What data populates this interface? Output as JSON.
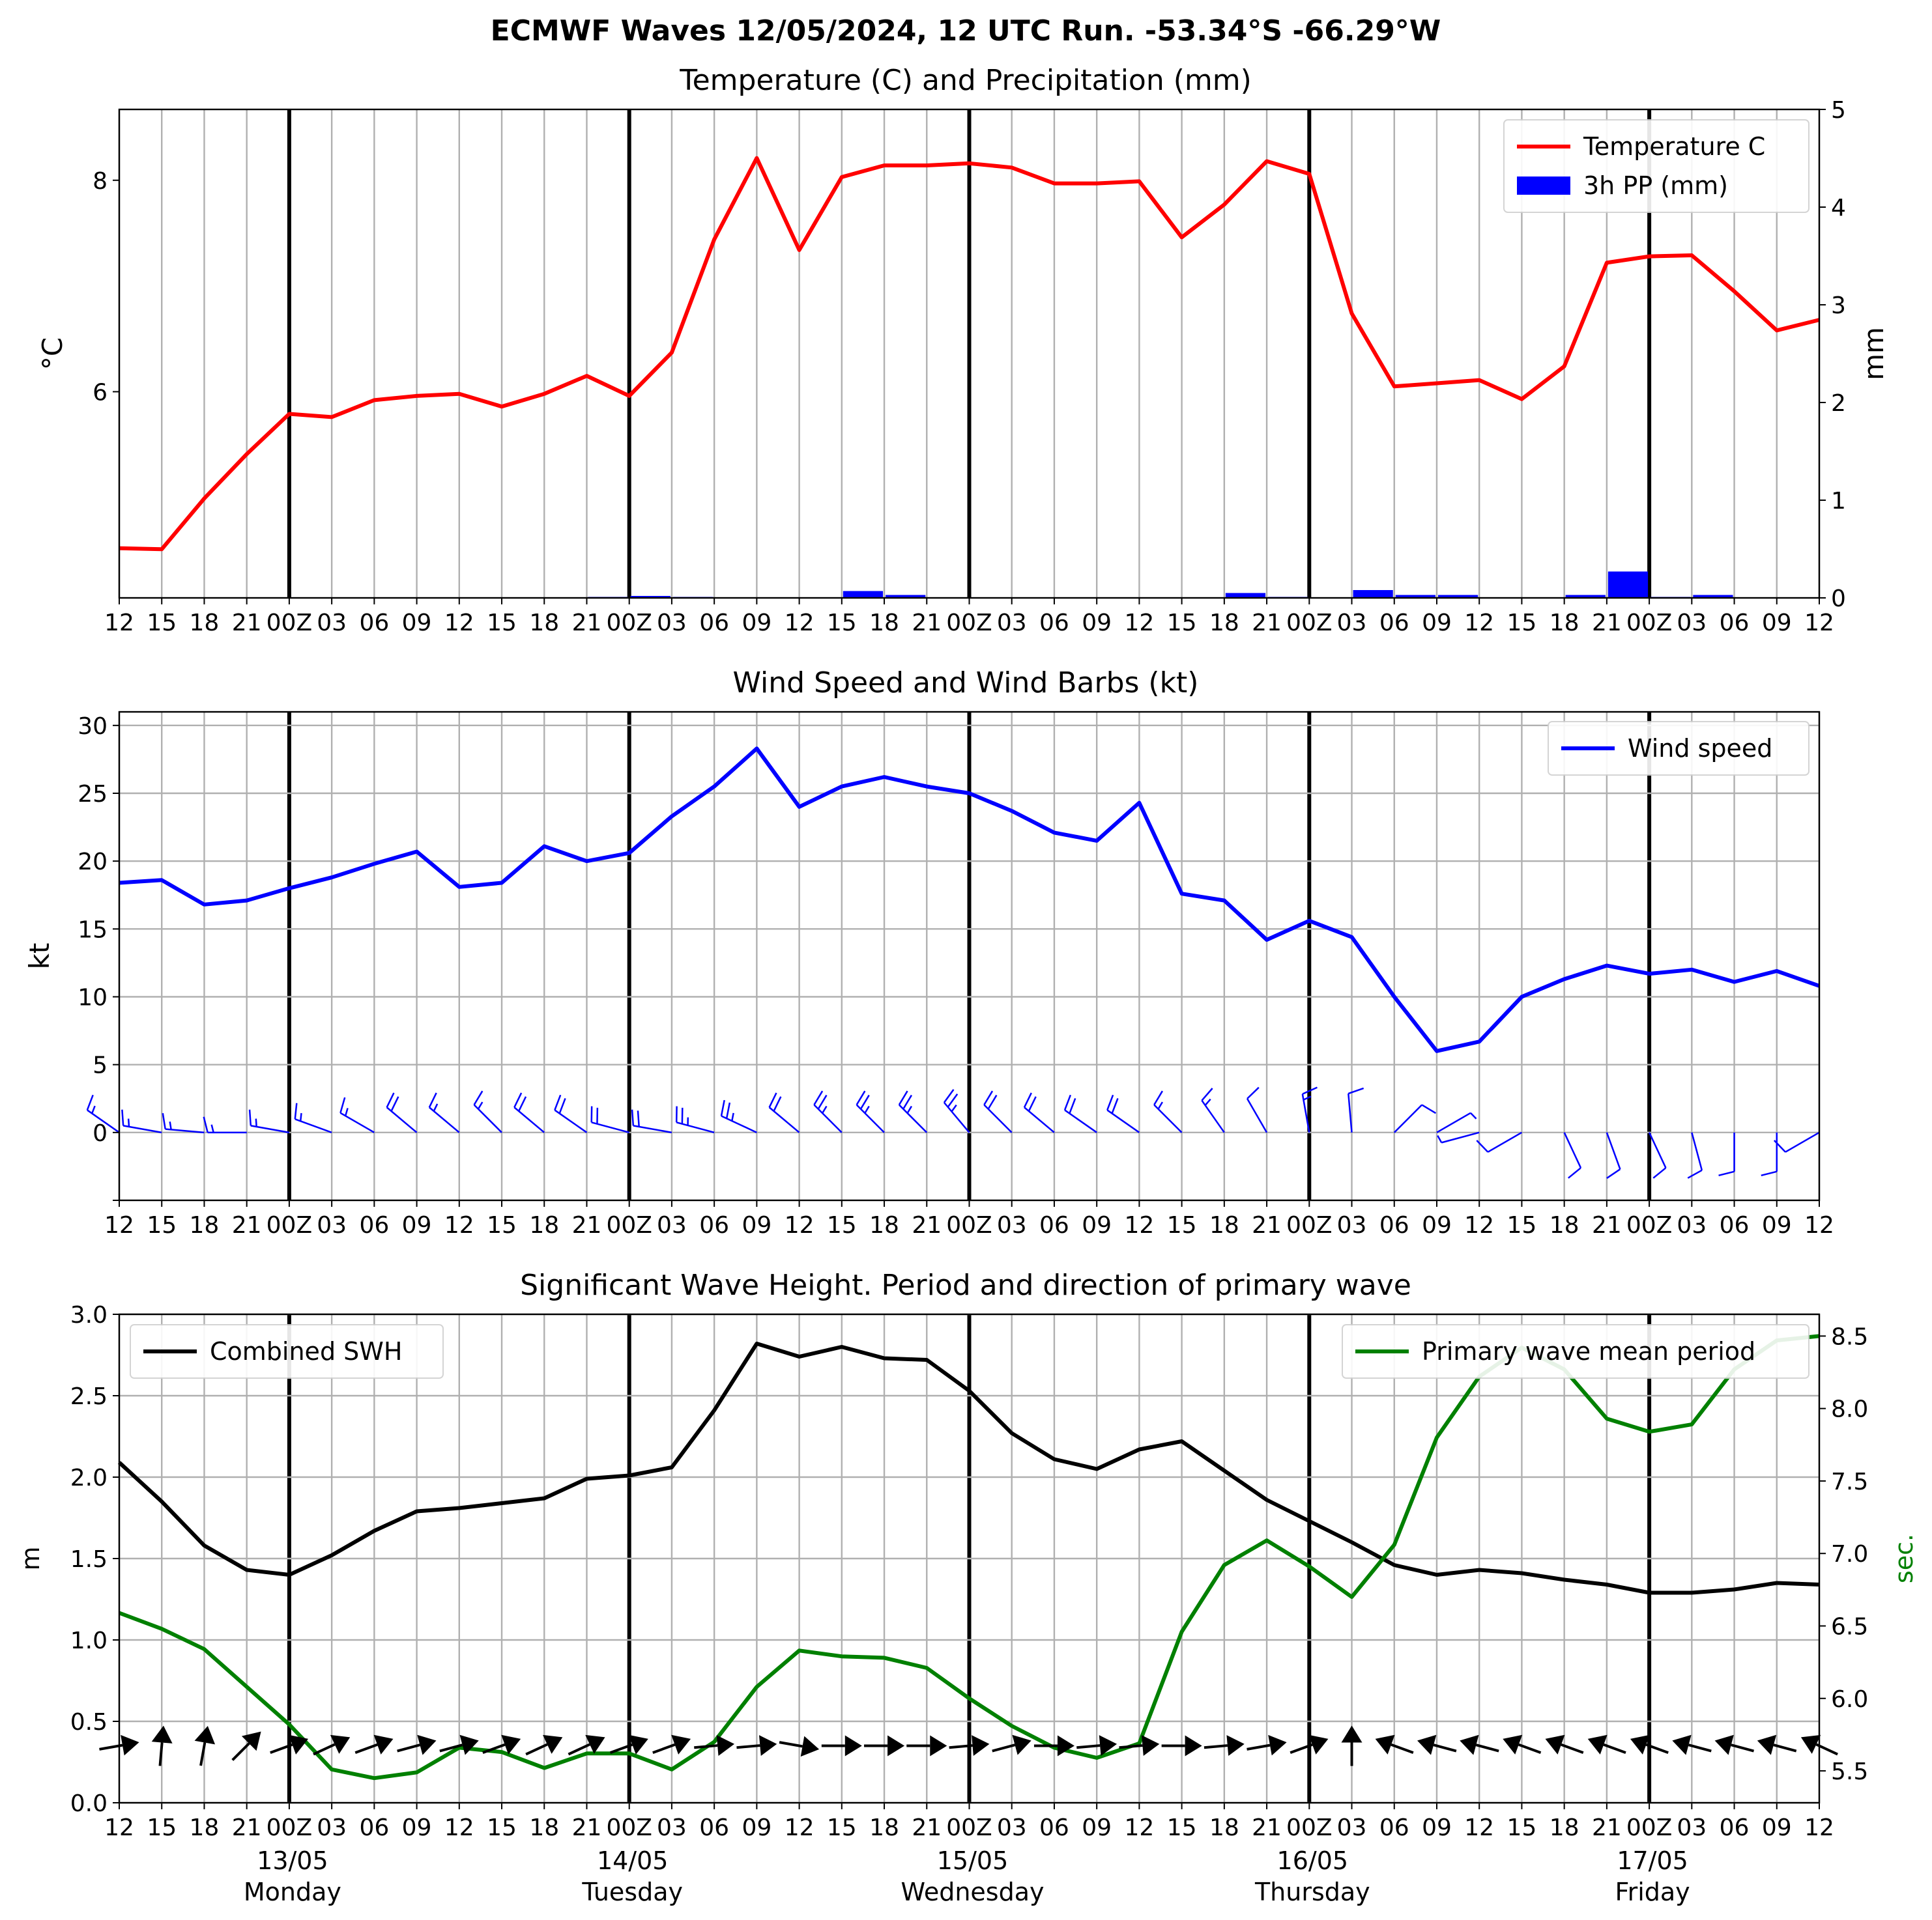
{
  "figure": {
    "suptitle": "ECMWF Waves 12/05/2024, 12 UTC Run. -53.34°S -66.29°W"
  },
  "x_axis": {
    "tick_labels": [
      "12",
      "15",
      "18",
      "21",
      "00Z",
      "03",
      "06",
      "09",
      "12",
      "15",
      "18",
      "21",
      "00Z",
      "03",
      "06",
      "09",
      "12",
      "15",
      "18",
      "21",
      "00Z",
      "03",
      "06",
      "09",
      "12",
      "15",
      "18",
      "21",
      "00Z",
      "03",
      "06",
      "09",
      "12",
      "15",
      "18",
      "21",
      "00Z",
      "03",
      "06",
      "09",
      "12"
    ],
    "day_labels": [
      {
        "date": "13/05",
        "weekday": "Monday"
      },
      {
        "date": "14/05",
        "weekday": "Tuesday"
      },
      {
        "date": "15/05",
        "weekday": "Wednesday"
      },
      {
        "date": "16/05",
        "weekday": "Thursday"
      },
      {
        "date": "17/05",
        "weekday": "Friday"
      }
    ]
  },
  "chart_data": [
    {
      "type": "line",
      "title": "Temperature (C) and Precipitation (mm)",
      "ylabel": "°C",
      "y2label": "mm",
      "ylim": [
        4.05,
        8.67
      ],
      "y_ticks": [
        "6",
        "8"
      ],
      "y2lim": [
        0,
        5
      ],
      "y2_ticks": [
        "0",
        "1",
        "2",
        "3",
        "4",
        "5"
      ],
      "legend_position": "top-right",
      "series": [
        {
          "name": "Temperature C",
          "kind": "line",
          "color": "#ff0000",
          "values": [
            4.52,
            4.51,
            4.99,
            5.41,
            5.79,
            5.76,
            5.92,
            5.96,
            5.98,
            5.86,
            5.98,
            6.15,
            5.96,
            6.37,
            7.44,
            8.21,
            7.34,
            8.03,
            8.14,
            8.14,
            8.16,
            8.12,
            7.97,
            7.97,
            7.99,
            7.46,
            7.77,
            8.18,
            8.06,
            6.74,
            6.05,
            6.08,
            6.11,
            5.93,
            6.24,
            7.22,
            7.28,
            7.29,
            6.95,
            6.58,
            6.68
          ]
        },
        {
          "name": "3h PP (mm)",
          "kind": "bar",
          "color": "#0000ff",
          "values": [
            0,
            0,
            0,
            0,
            0,
            0,
            0,
            0,
            0,
            0,
            0,
            0.01,
            0.02,
            0.01,
            0,
            0,
            0,
            0.07,
            0.03,
            0,
            0,
            0,
            0,
            0,
            0,
            0,
            0.05,
            0.01,
            0,
            0.08,
            0.03,
            0.03,
            0,
            0,
            0.03,
            0.27,
            0.01,
            0.03,
            0,
            0,
            0
          ]
        }
      ]
    },
    {
      "type": "line",
      "title": "Wind Speed and Wind Barbs (kt)",
      "ylabel": "kt",
      "ylim": [
        -5,
        31
      ],
      "y_ticks": [
        "0",
        "5",
        "10",
        "15",
        "20",
        "25",
        "30"
      ],
      "legend_position": "top-right",
      "series": [
        {
          "name": "Wind speed",
          "kind": "line",
          "color": "#0000ff",
          "values": [
            18.4,
            18.6,
            16.8,
            17.1,
            18.0,
            18.8,
            19.8,
            20.7,
            18.1,
            18.4,
            21.1,
            20.0,
            20.6,
            23.3,
            25.5,
            28.3,
            24.0,
            25.5,
            26.2,
            25.5,
            25.0,
            23.7,
            22.1,
            21.5,
            24.3,
            17.6,
            17.1,
            14.2,
            15.6,
            14.4,
            10.0,
            6.0,
            6.7,
            10.0,
            11.3,
            12.3,
            11.7,
            12.0,
            11.1,
            11.9,
            10.8
          ]
        }
      ],
      "wind_barbs": {
        "speed_kt": [
          18.4,
          18.6,
          16.8,
          17.1,
          18.0,
          18.8,
          19.8,
          20.7,
          18.1,
          18.4,
          21.1,
          20.0,
          20.6,
          23.3,
          25.5,
          28.3,
          24.0,
          25.5,
          26.2,
          25.5,
          25.0,
          23.7,
          22.1,
          21.5,
          24.3,
          17.6,
          17.1,
          14.2,
          15.6,
          14.4,
          10.0,
          6.0,
          6.7,
          10.0,
          11.3,
          12.3,
          11.7,
          12.0,
          11.1,
          11.9,
          10.8
        ],
        "direction_deg": [
          305,
          280,
          275,
          270,
          280,
          290,
          300,
          310,
          310,
          315,
          310,
          305,
          285,
          280,
          285,
          295,
          310,
          315,
          315,
          315,
          320,
          315,
          310,
          305,
          305,
          315,
          325,
          330,
          350,
          355,
          45,
          60,
          255,
          240,
          155,
          160,
          155,
          165,
          180,
          180,
          240
        ]
      }
    },
    {
      "type": "line",
      "title": "Significant Wave Height. Period and direction of primary wave",
      "ylabel": "m",
      "y2label": "sec.",
      "ylim": [
        0,
        3.0
      ],
      "y_ticks": [
        "0.0",
        "0.5",
        "1.0",
        "1.5",
        "2.0",
        "2.5",
        "3.0"
      ],
      "y2lim": [
        5.28,
        8.65
      ],
      "y2_ticks": [
        "5.5",
        "6.0",
        "6.5",
        "7.0",
        "7.5",
        "8.0",
        "8.5"
      ],
      "series": [
        {
          "name": "Combined SWH",
          "kind": "line",
          "color": "#000000",
          "axis": "left",
          "legend_position": "top-left",
          "values": [
            2.09,
            1.85,
            1.58,
            1.43,
            1.4,
            1.52,
            1.67,
            1.79,
            1.81,
            1.84,
            1.87,
            1.99,
            2.01,
            2.06,
            2.41,
            2.82,
            2.74,
            2.8,
            2.73,
            2.72,
            2.53,
            2.27,
            2.11,
            2.05,
            2.17,
            2.22,
            2.04,
            1.86,
            1.73,
            1.6,
            1.46,
            1.4,
            1.43,
            1.41,
            1.37,
            1.34,
            1.29,
            1.29,
            1.31,
            1.35,
            1.34
          ]
        },
        {
          "name": "Primary wave mean period",
          "kind": "line",
          "color": "#008000",
          "axis": "right",
          "legend_position": "top-right",
          "values": [
            6.59,
            6.48,
            6.34,
            6.08,
            5.82,
            5.51,
            5.45,
            5.49,
            5.66,
            5.63,
            5.52,
            5.62,
            5.62,
            5.51,
            5.7,
            6.08,
            6.33,
            6.29,
            6.28,
            6.21,
            6.0,
            5.81,
            5.66,
            5.59,
            5.69,
            6.46,
            6.92,
            7.09,
            6.91,
            6.7,
            7.06,
            7.8,
            8.22,
            8.42,
            8.27,
            7.93,
            7.84,
            7.89,
            8.27,
            8.47,
            8.5
          ]
        }
      ],
      "wave_direction_deg": [
        260,
        185,
        190,
        225,
        250,
        245,
        250,
        255,
        255,
        250,
        245,
        245,
        250,
        250,
        265,
        265,
        280,
        270,
        270,
        270,
        265,
        255,
        270,
        265,
        265,
        270,
        265,
        260,
        250,
        180,
        110,
        105,
        105,
        110,
        110,
        110,
        110,
        105,
        105,
        105,
        115
      ]
    }
  ]
}
